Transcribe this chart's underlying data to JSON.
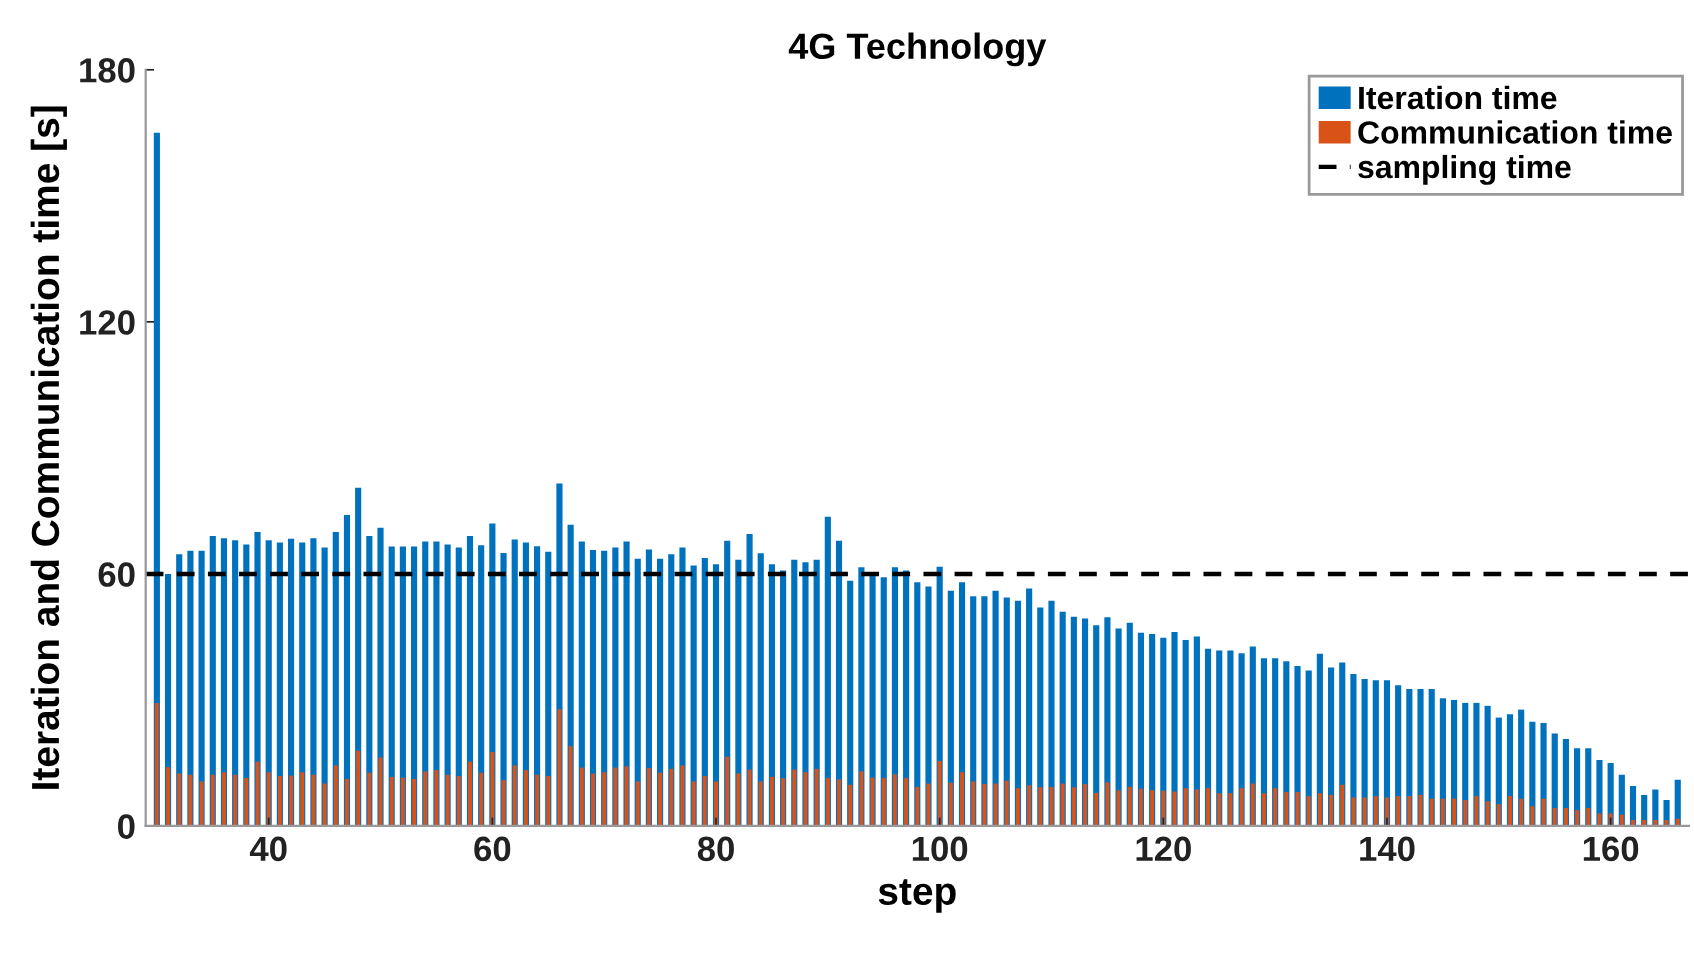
{
  "chart_data": {
    "type": "bar",
    "title": "4G Technology",
    "xlabel": "step",
    "ylabel": "Iteration and Communication time [s]",
    "x": [
      30,
      31,
      32,
      33,
      34,
      35,
      36,
      37,
      38,
      39,
      40,
      41,
      42,
      43,
      44,
      45,
      46,
      47,
      48,
      49,
      50,
      51,
      52,
      53,
      54,
      55,
      56,
      57,
      58,
      59,
      60,
      61,
      62,
      63,
      64,
      65,
      66,
      67,
      68,
      69,
      70,
      71,
      72,
      73,
      74,
      75,
      76,
      77,
      78,
      79,
      80,
      81,
      82,
      83,
      84,
      85,
      86,
      87,
      88,
      89,
      90,
      91,
      92,
      93,
      94,
      95,
      96,
      97,
      98,
      99,
      100,
      101,
      102,
      103,
      104,
      105,
      106,
      107,
      108,
      109,
      110,
      111,
      112,
      113,
      114,
      115,
      116,
      117,
      118,
      119,
      120,
      121,
      122,
      123,
      124,
      125,
      126,
      127,
      128,
      129,
      130,
      131,
      132,
      133,
      134,
      135,
      136,
      137,
      138,
      139,
      140,
      141,
      142,
      143,
      144,
      145,
      146,
      147,
      148,
      149,
      150,
      151,
      152,
      153,
      154,
      155,
      156,
      157,
      158,
      159,
      160,
      161,
      162,
      163,
      164,
      165,
      166
    ],
    "series": [
      {
        "name": "Iteration time",
        "color": "#0072bd",
        "values": [
          165,
          60,
          64.7,
          65.5,
          65.5,
          69,
          68.5,
          68,
          67,
          70,
          68,
          67.5,
          68.4,
          67.5,
          68.5,
          66.3,
          70,
          74,
          80.5,
          69,
          71,
          66.5,
          66.5,
          66.5,
          67.7,
          67.7,
          67,
          66.3,
          69,
          66.8,
          72,
          65,
          68.2,
          67.5,
          66.6,
          65.3,
          81.5,
          71.7,
          67.7,
          65.7,
          65.5,
          66.3,
          67.7,
          63.6,
          65.8,
          63.6,
          64.7,
          66.3,
          62,
          63.8,
          62.3,
          67.9,
          63.4,
          69.5,
          64.9,
          62.3,
          60.8,
          63.4,
          62.8,
          63.4,
          73.6,
          67.9,
          58.4,
          61.6,
          60.4,
          59.2,
          61.6,
          60.8,
          58,
          57,
          61.7,
          56,
          58,
          54.7,
          54.7,
          56,
          54.4,
          53.6,
          56.5,
          52,
          53.6,
          51,
          49.8,
          49.4,
          47.8,
          49.7,
          47,
          48.4,
          46,
          45.7,
          44.8,
          46.2,
          44.3,
          45.1,
          42.2,
          41.8,
          41.8,
          41.1,
          42.7,
          39.9,
          39.9,
          39.2,
          38.1,
          37,
          41,
          37.7,
          38.9,
          36.2,
          35,
          34.7,
          34.7,
          33.5,
          32.6,
          32.6,
          32.6,
          30.4,
          30,
          29.3,
          29.3,
          28.6,
          25.8,
          26.6,
          27.7,
          24.8,
          24.5,
          22,
          20.7,
          18.5,
          18.5,
          15.7,
          15,
          12.2,
          9.5,
          7.4,
          8.7,
          6.2,
          11
        ]
      },
      {
        "name": "Communication time",
        "color": "#d95319",
        "values": [
          29.3,
          14,
          12.5,
          12.2,
          10.6,
          12.2,
          12.8,
          12.2,
          11.4,
          15.3,
          12.8,
          11.9,
          12,
          12.8,
          12.2,
          10.1,
          14.4,
          11.2,
          17.9,
          12.7,
          16.3,
          11.7,
          11.5,
          11.2,
          13,
          13.3,
          12.2,
          11.9,
          15.3,
          12.7,
          17.6,
          10.9,
          14.4,
          13.3,
          12.2,
          11.9,
          27.8,
          19,
          13.9,
          12.5,
          12.8,
          13.9,
          14.2,
          10.6,
          13.8,
          12.7,
          13.6,
          14.4,
          10.6,
          11.9,
          10.6,
          16.5,
          12.5,
          13.4,
          10.6,
          11.7,
          11.4,
          13.4,
          12.8,
          13.6,
          11.4,
          11.1,
          9.8,
          13,
          11.5,
          11.4,
          12.3,
          11.4,
          9.3,
          10.1,
          15.5,
          10.3,
          12.8,
          10.6,
          10,
          10.1,
          10.8,
          9,
          9.7,
          9.2,
          9.3,
          10.1,
          9.2,
          10,
          7.9,
          10.4,
          8.5,
          9.3,
          8.9,
          8.5,
          8.4,
          8.2,
          9,
          8.7,
          9,
          7.8,
          7.8,
          9,
          10.1,
          7.8,
          9,
          8.1,
          8.1,
          7.1,
          7.8,
          7.4,
          9.8,
          6.8,
          6.8,
          7.1,
          6.8,
          7.1,
          7.1,
          7.4,
          6.5,
          6.5,
          6.5,
          6.2,
          7.1,
          5.9,
          5.2,
          7.1,
          6.5,
          4.7,
          6.5,
          4.3,
          4.3,
          3.8,
          4.3,
          3,
          3,
          2.7,
          1.4,
          1.4,
          1.4,
          1.4,
          1.7
        ]
      }
    ],
    "xlim": [
      29,
      167
    ],
    "xticks": [
      40,
      60,
      80,
      100,
      120,
      140,
      160
    ],
    "ylim": [
      0,
      180
    ],
    "yticks": [
      0,
      60,
      120,
      180
    ],
    "ref_lines": [
      {
        "axis": "y",
        "value": 60,
        "label": "sampling time",
        "color": "#000000",
        "line_style": "dashed"
      }
    ],
    "legend": "top right"
  }
}
